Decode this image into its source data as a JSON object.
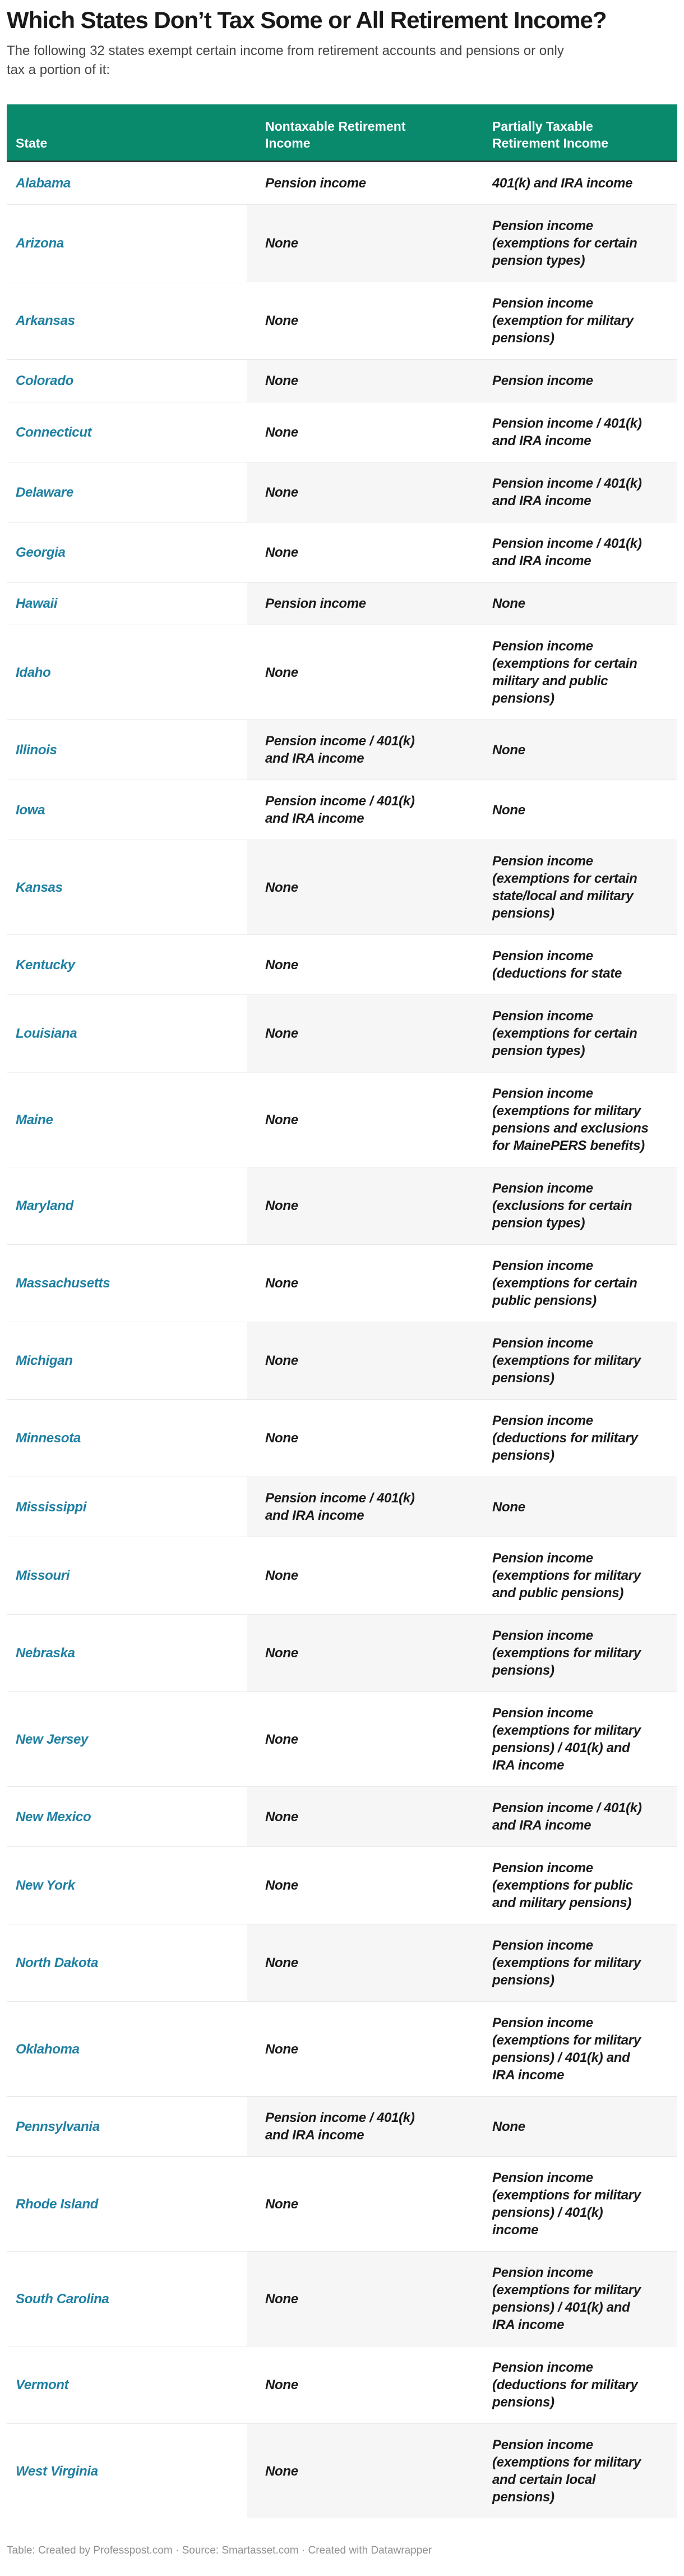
{
  "title": "Which States Don’t Tax Some or All Retirement Income?",
  "subtitle": "The following 32 states exempt certain income from retirement accounts and pensions or only\ntax a portion of it:",
  "table": {
    "columns": [
      "State",
      "Nontaxable Retirement\nIncome",
      "Partially Taxable\nRetirement Income"
    ],
    "rows": [
      {
        "state": "Alabama",
        "nontaxable": "Pension income",
        "partially_taxable": "401(k) and IRA income"
      },
      {
        "state": "Arizona",
        "nontaxable": "None",
        "partially_taxable": "Pension income\n(exemptions for certain\npension types)"
      },
      {
        "state": "Arkansas",
        "nontaxable": "None",
        "partially_taxable": "Pension income\n(exemption for military\npensions)"
      },
      {
        "state": "Colorado",
        "nontaxable": "None",
        "partially_taxable": "Pension income"
      },
      {
        "state": "Connecticut",
        "nontaxable": "None",
        "partially_taxable": "Pension income / 401(k)\nand IRA income"
      },
      {
        "state": "Delaware",
        "nontaxable": "None",
        "partially_taxable": "Pension income / 401(k)\nand IRA income"
      },
      {
        "state": "Georgia",
        "nontaxable": "None",
        "partially_taxable": "Pension income / 401(k)\nand IRA income"
      },
      {
        "state": "Hawaii",
        "nontaxable": "Pension income",
        "partially_taxable": "None"
      },
      {
        "state": "Idaho",
        "nontaxable": "None",
        "partially_taxable": "Pension income\n(exemptions for certain\nmilitary and public\npensions)"
      },
      {
        "state": "Illinois",
        "nontaxable": "Pension income / 401(k)\nand IRA income",
        "partially_taxable": "None"
      },
      {
        "state": "Iowa",
        "nontaxable": "Pension income / 401(k)\nand IRA income",
        "partially_taxable": "None"
      },
      {
        "state": "Kansas",
        "nontaxable": "None",
        "partially_taxable": "Pension income\n(exemptions for certain\nstate/local and military\npensions)"
      },
      {
        "state": "Kentucky",
        "nontaxable": "None",
        "partially_taxable": "Pension income\n(deductions for state"
      },
      {
        "state": "Louisiana",
        "nontaxable": "None",
        "partially_taxable": "Pension income\n(exemptions for certain\npension types)"
      },
      {
        "state": "Maine",
        "nontaxable": "None",
        "partially_taxable": "Pension income\n(exemptions for military\npensions and exclusions\nfor MainePERS benefits)"
      },
      {
        "state": "Maryland",
        "nontaxable": "None",
        "partially_taxable": "Pension income\n(exclusions for certain\npension types)"
      },
      {
        "state": "Massachusetts",
        "nontaxable": "None",
        "partially_taxable": "Pension income\n(exemptions for certain\npublic pensions)"
      },
      {
        "state": "Michigan",
        "nontaxable": "None",
        "partially_taxable": "Pension income\n(exemptions for military\npensions)"
      },
      {
        "state": "Minnesota",
        "nontaxable": "None",
        "partially_taxable": "Pension income\n(deductions for military\npensions)"
      },
      {
        "state": "Mississippi",
        "nontaxable": "Pension income / 401(k)\nand IRA income",
        "partially_taxable": "None"
      },
      {
        "state": "Missouri",
        "nontaxable": "None",
        "partially_taxable": "Pension income\n(exemptions for military\nand public pensions)"
      },
      {
        "state": "Nebraska",
        "nontaxable": "None",
        "partially_taxable": "Pension income\n(exemptions for military\npensions)"
      },
      {
        "state": "New Jersey",
        "nontaxable": "None",
        "partially_taxable": "Pension income\n(exemptions for military\npensions) / 401(k) and\nIRA income"
      },
      {
        "state": "New Mexico",
        "nontaxable": "None",
        "partially_taxable": "Pension income / 401(k)\nand IRA income"
      },
      {
        "state": "New York",
        "nontaxable": "None",
        "partially_taxable": "Pension income\n(exemptions for public\nand military pensions)"
      },
      {
        "state": "North Dakota",
        "nontaxable": "None",
        "partially_taxable": "Pension income\n(exemptions for military\npensions)"
      },
      {
        "state": "Oklahoma",
        "nontaxable": "None",
        "partially_taxable": "Pension income\n(exemptions for military\npensions) / 401(k) and\nIRA income"
      },
      {
        "state": "Pennsylvania",
        "nontaxable": "Pension income / 401(k)\nand IRA income",
        "partially_taxable": "None"
      },
      {
        "state": "Rhode Island",
        "nontaxable": "None",
        "partially_taxable": "Pension income\n(exemptions for military\npensions) / 401(k)\nincome"
      },
      {
        "state": "South Carolina",
        "nontaxable": "None",
        "partially_taxable": "Pension income\n(exemptions for military\npensions) / 401(k) and\nIRA income"
      },
      {
        "state": "Vermont",
        "nontaxable": "None",
        "partially_taxable": "Pension income\n(deductions for military\npensions)"
      },
      {
        "state": "West Virginia",
        "nontaxable": "None",
        "partially_taxable": "Pension income\n(exemptions for military\nand certain local\npensions)"
      }
    ]
  },
  "footer": "Table: Created by Professpost.com · Source: Smartasset.com · Created with Datawrapper",
  "colors": {
    "header-green": "#098a6d",
    "header-text": "#ffffff",
    "header-border": "#333333",
    "state-link": "#1f80a3",
    "cell-text": "#1a1a1a",
    "stripe": "#f6f6f6",
    "divider": "#e8e8e8",
    "title-text": "#191919",
    "subtitle-text": "#454545",
    "footer-text": "#919191"
  }
}
